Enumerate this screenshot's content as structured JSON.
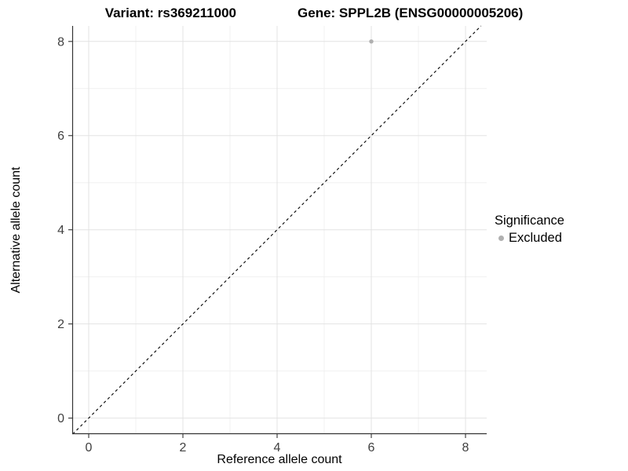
{
  "titles": {
    "variant_title": "Variant: rs369211000",
    "gene_title": "Gene: SPPL2B (ENSG00000005206)"
  },
  "legend": {
    "title": "Significance",
    "items": [
      {
        "label": "Excluded",
        "color": "#b0b0b0"
      }
    ]
  },
  "chart_data": {
    "type": "scatter",
    "title": "Variant: rs369211000  Gene: SPPL2B (ENSG00000005206)",
    "xlabel": "Reference allele count",
    "ylabel": "Alternative allele count",
    "xlim": [
      -0.35,
      8.45
    ],
    "ylim": [
      -0.34,
      8.33
    ],
    "x_major_ticks": [
      0,
      2,
      4,
      6,
      8
    ],
    "y_major_ticks": [
      0,
      2,
      4,
      6,
      8
    ],
    "x_minor_ticks": [
      1,
      3,
      5,
      7
    ],
    "y_minor_ticks": [
      1,
      3,
      5,
      7
    ],
    "grid": true,
    "legend_position": "right",
    "series": [
      {
        "name": "Excluded",
        "points": [
          {
            "x": 6,
            "y": 8
          }
        ],
        "color": "#b0b0b0"
      }
    ],
    "reference_line": {
      "type": "identity",
      "equation": "y = x",
      "style": "dashed",
      "color": "#000000"
    },
    "colors": {
      "major_grid": "#e3e3e3",
      "minor_grid": "#f0f0f0",
      "axis_line": "#333333",
      "tick_label": "#404040",
      "point": "#b0b0b0"
    }
  }
}
